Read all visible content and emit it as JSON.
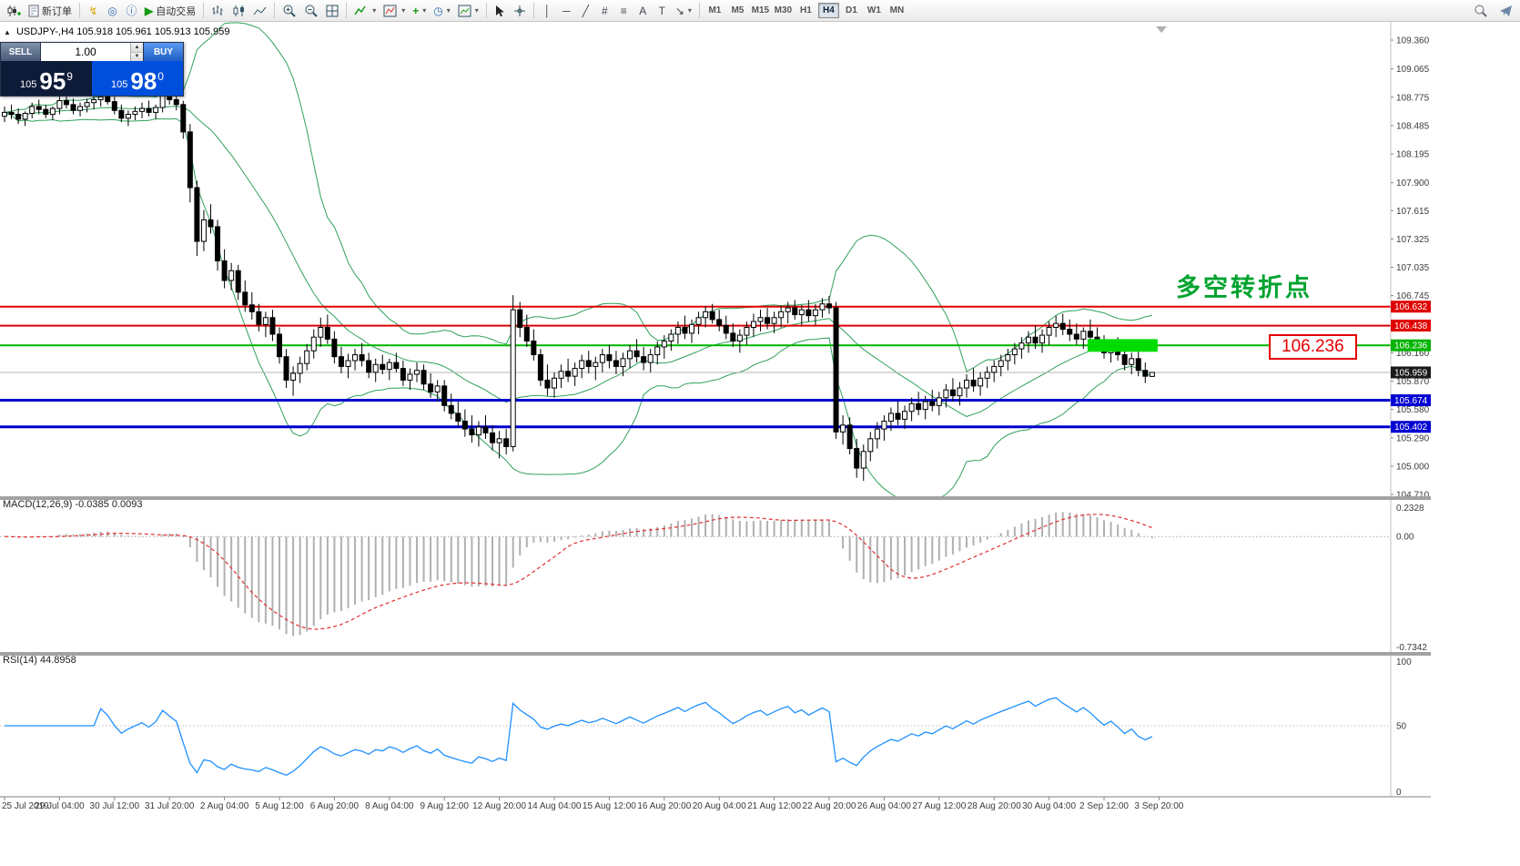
{
  "toolbar": {
    "new_order_label": "新订单",
    "autotrading_label": "自动交易",
    "timeframes": [
      "M1",
      "M5",
      "M15",
      "M30",
      "H1",
      "H4",
      "D1",
      "W1",
      "MN"
    ],
    "active_timeframe": "H4",
    "icons": {
      "new_order": "▤",
      "metaeditor": "↯",
      "market_watch": "◎",
      "info": "ⓘ",
      "autotrading_play": "▶",
      "add_indicator": "+",
      "periods_clock": "◷",
      "caret": "▾",
      "vertical_line": "│",
      "horizontal_line": "─",
      "trendline": "╱",
      "channel": "#",
      "fibonacci": "≡",
      "text": "A",
      "text_label": "T",
      "arrow_tool": "↘",
      "spinner_up": "▲",
      "spinner_down": "▼",
      "symbol_trend": "▲"
    }
  },
  "trade_panel": {
    "sell_label": "SELL",
    "buy_label": "BUY",
    "volume": "1.00",
    "sell_price": {
      "prefix": "105",
      "big": "95",
      "sup": "9"
    },
    "buy_price": {
      "prefix": "105",
      "big": "98",
      "sup": "0"
    }
  },
  "symbol_info": {
    "symbol": "USDJPY-,H4",
    "ohlc": "105.918 105.961 105.913 105.959"
  },
  "annotations": {
    "turning_point_text": "多空转折点",
    "price_box_text": "106.236"
  },
  "indicator_labels": {
    "macd": "MACD(12,26,9) -0.0385 0.0093",
    "rsi": "RSI(14) 44.8958"
  },
  "chart_data": {
    "type": "candlestick",
    "symbol": "USDJPY",
    "timeframe": "H4",
    "title": "USDJPY-,H4",
    "price_axis": {
      "max": 109.36,
      "min": 104.71,
      "ticks": [
        "109.360",
        "109.065",
        "108.775",
        "108.485",
        "108.195",
        "107.900",
        "107.615",
        "107.325",
        "107.035",
        "106.745",
        "106.455",
        "106.160",
        "105.870",
        "105.580",
        "105.290",
        "105.000",
        "104.710"
      ]
    },
    "time_labels": [
      "25 Jul 2019",
      "29 Jul 04:00",
      "30 Jul 12:00",
      "31 Jul 20:00",
      "2 Aug 04:00",
      "5 Aug 12:00",
      "6 Aug 20:00",
      "8 Aug 04:00",
      "9 Aug 12:00",
      "12 Aug 20:00",
      "14 Aug 04:00",
      "15 Aug 12:00",
      "16 Aug 20:00",
      "20 Aug 04:00",
      "21 Aug 12:00",
      "22 Aug 20:00",
      "26 Aug 04:00",
      "27 Aug 12:00",
      "28 Aug 20:00",
      "30 Aug 04:00",
      "2 Sep 12:00",
      "3 Sep 20:00"
    ],
    "bars_per_label": 8,
    "candles": [
      [
        108.58,
        108.68,
        108.52,
        108.62
      ],
      [
        108.62,
        108.7,
        108.55,
        108.6
      ],
      [
        108.6,
        108.66,
        108.5,
        108.55
      ],
      [
        108.55,
        108.63,
        108.48,
        108.61
      ],
      [
        108.61,
        108.72,
        108.56,
        108.68
      ],
      [
        108.68,
        108.75,
        108.6,
        108.65
      ],
      [
        108.65,
        108.7,
        108.56,
        108.6
      ],
      [
        108.6,
        108.68,
        108.54,
        108.66
      ],
      [
        108.66,
        108.78,
        108.6,
        108.74
      ],
      [
        108.74,
        108.8,
        108.66,
        108.7
      ],
      [
        108.7,
        108.76,
        108.6,
        108.64
      ],
      [
        108.64,
        108.72,
        108.58,
        108.68
      ],
      [
        108.68,
        108.76,
        108.62,
        108.72
      ],
      [
        108.72,
        108.8,
        108.65,
        108.75
      ],
      [
        108.75,
        108.82,
        108.68,
        108.78
      ],
      [
        108.78,
        108.84,
        108.7,
        108.73
      ],
      [
        108.73,
        108.78,
        108.6,
        108.64
      ],
      [
        108.64,
        108.7,
        108.52,
        108.56
      ],
      [
        108.56,
        108.64,
        108.48,
        108.6
      ],
      [
        108.6,
        108.68,
        108.54,
        108.63
      ],
      [
        108.63,
        108.72,
        108.56,
        108.66
      ],
      [
        108.66,
        108.74,
        108.58,
        108.62
      ],
      [
        108.62,
        108.7,
        108.55,
        108.67
      ],
      [
        108.67,
        108.85,
        108.62,
        108.8
      ],
      [
        108.8,
        108.88,
        108.7,
        108.75
      ],
      [
        108.75,
        108.82,
        108.64,
        108.7
      ],
      [
        108.7,
        108.74,
        108.35,
        108.42
      ],
      [
        108.42,
        108.5,
        107.7,
        107.85
      ],
      [
        107.85,
        107.92,
        107.15,
        107.3
      ],
      [
        107.3,
        107.62,
        107.2,
        107.52
      ],
      [
        107.52,
        107.68,
        107.38,
        107.45
      ],
      [
        107.45,
        107.52,
        107.0,
        107.1
      ],
      [
        107.1,
        107.22,
        106.82,
        106.9
      ],
      [
        106.9,
        107.08,
        106.8,
        107.0
      ],
      [
        107.0,
        107.06,
        106.7,
        106.78
      ],
      [
        106.78,
        106.9,
        106.58,
        106.65
      ],
      [
        106.65,
        106.78,
        106.5,
        106.58
      ],
      [
        106.58,
        106.66,
        106.38,
        106.45
      ],
      [
        106.45,
        106.58,
        106.32,
        106.52
      ],
      [
        106.52,
        106.6,
        106.28,
        106.35
      ],
      [
        106.35,
        106.42,
        106.05,
        106.12
      ],
      [
        106.12,
        106.2,
        105.8,
        105.88
      ],
      [
        105.88,
        106.02,
        105.72,
        105.95
      ],
      [
        105.95,
        106.12,
        105.85,
        106.05
      ],
      [
        106.05,
        106.25,
        105.98,
        106.18
      ],
      [
        106.18,
        106.4,
        106.1,
        106.32
      ],
      [
        106.32,
        106.52,
        106.22,
        106.42
      ],
      [
        106.42,
        106.55,
        106.25,
        106.3
      ],
      [
        106.3,
        106.38,
        106.05,
        106.12
      ],
      [
        106.12,
        106.22,
        105.95,
        106.02
      ],
      [
        106.02,
        106.15,
        105.9,
        106.08
      ],
      [
        106.08,
        106.2,
        105.98,
        106.14
      ],
      [
        106.14,
        106.26,
        106.02,
        106.08
      ],
      [
        106.08,
        106.16,
        105.9,
        105.96
      ],
      [
        105.96,
        106.1,
        105.86,
        106.04
      ],
      [
        106.04,
        106.14,
        105.94,
        105.99
      ],
      [
        105.99,
        106.1,
        105.88,
        106.06
      ],
      [
        106.06,
        106.16,
        105.96,
        106.0
      ],
      [
        106.0,
        106.08,
        105.82,
        105.88
      ],
      [
        105.88,
        106.0,
        105.78,
        105.94
      ],
      [
        105.94,
        106.06,
        105.86,
        105.98
      ],
      [
        105.98,
        106.04,
        105.78,
        105.84
      ],
      [
        105.84,
        105.95,
        105.7,
        105.76
      ],
      [
        105.76,
        105.88,
        105.66,
        105.82
      ],
      [
        105.82,
        105.88,
        105.56,
        105.62
      ],
      [
        105.62,
        105.74,
        105.48,
        105.54
      ],
      [
        105.54,
        105.66,
        105.4,
        105.46
      ],
      [
        105.46,
        105.58,
        105.3,
        105.38
      ],
      [
        105.38,
        105.52,
        105.24,
        105.32
      ],
      [
        105.32,
        105.46,
        105.2,
        105.4
      ],
      [
        105.4,
        105.52,
        105.28,
        105.34
      ],
      [
        105.34,
        105.42,
        105.16,
        105.24
      ],
      [
        105.24,
        105.36,
        105.08,
        105.28
      ],
      [
        105.28,
        105.38,
        105.12,
        105.2
      ],
      [
        105.2,
        106.75,
        105.15,
        106.6
      ],
      [
        106.6,
        106.68,
        106.32,
        106.42
      ],
      [
        106.42,
        106.55,
        106.22,
        106.28
      ],
      [
        106.28,
        106.4,
        106.08,
        106.14
      ],
      [
        106.14,
        106.2,
        105.82,
        105.88
      ],
      [
        105.88,
        106.04,
        105.72,
        105.8
      ],
      [
        105.8,
        105.96,
        105.7,
        105.9
      ],
      [
        105.9,
        106.04,
        105.8,
        105.97
      ],
      [
        105.97,
        106.1,
        105.86,
        105.92
      ],
      [
        105.92,
        106.06,
        105.82,
        106.0
      ],
      [
        106.0,
        106.14,
        105.9,
        106.08
      ],
      [
        106.08,
        106.18,
        105.95,
        106.02
      ],
      [
        106.02,
        106.12,
        105.88,
        106.06
      ],
      [
        106.06,
        106.2,
        105.96,
        106.14
      ],
      [
        106.14,
        106.24,
        106.0,
        106.08
      ],
      [
        106.08,
        106.18,
        105.94,
        106.02
      ],
      [
        106.02,
        106.16,
        105.92,
        106.1
      ],
      [
        106.1,
        106.24,
        106.0,
        106.18
      ],
      [
        106.18,
        106.3,
        106.06,
        106.12
      ],
      [
        106.12,
        106.22,
        105.98,
        106.06
      ],
      [
        106.06,
        106.2,
        105.96,
        106.14
      ],
      [
        106.14,
        106.28,
        106.04,
        106.22
      ],
      [
        106.22,
        106.34,
        106.1,
        106.28
      ],
      [
        106.28,
        106.4,
        106.18,
        106.35
      ],
      [
        106.35,
        106.48,
        106.25,
        106.42
      ],
      [
        106.42,
        106.54,
        106.3,
        106.36
      ],
      [
        106.36,
        106.5,
        106.26,
        106.45
      ],
      [
        106.45,
        106.58,
        106.35,
        106.52
      ],
      [
        106.52,
        106.64,
        106.42,
        106.58
      ],
      [
        106.58,
        106.66,
        106.46,
        106.5
      ],
      [
        106.5,
        106.6,
        106.38,
        106.44
      ],
      [
        106.44,
        106.54,
        106.3,
        106.36
      ],
      [
        106.36,
        106.46,
        106.22,
        106.28
      ],
      [
        106.28,
        106.4,
        106.16,
        106.34
      ],
      [
        106.34,
        106.48,
        106.24,
        106.42
      ],
      [
        106.42,
        106.56,
        106.32,
        106.48
      ],
      [
        106.48,
        106.6,
        106.38,
        106.52
      ],
      [
        106.52,
        106.62,
        106.4,
        106.46
      ],
      [
        106.46,
        106.58,
        106.36,
        106.52
      ],
      [
        106.52,
        106.64,
        106.42,
        106.58
      ],
      [
        106.58,
        106.68,
        106.46,
        106.62
      ],
      [
        106.62,
        106.7,
        106.5,
        106.55
      ],
      [
        106.55,
        106.65,
        106.44,
        106.6
      ],
      [
        106.6,
        106.7,
        106.48,
        106.54
      ],
      [
        106.54,
        106.66,
        106.44,
        106.6
      ],
      [
        106.6,
        106.72,
        106.52,
        106.66
      ],
      [
        106.66,
        106.74,
        106.56,
        106.62
      ],
      [
        106.62,
        106.68,
        105.28,
        105.35
      ],
      [
        105.35,
        105.52,
        105.22,
        105.42
      ],
      [
        105.42,
        105.5,
        105.12,
        105.18
      ],
      [
        105.18,
        105.28,
        104.88,
        104.98
      ],
      [
        104.98,
        105.22,
        104.85,
        105.15
      ],
      [
        105.15,
        105.35,
        105.05,
        105.28
      ],
      [
        105.28,
        105.45,
        105.18,
        105.38
      ],
      [
        105.38,
        105.52,
        105.26,
        105.46
      ],
      [
        105.46,
        105.6,
        105.36,
        105.54
      ],
      [
        105.54,
        105.66,
        105.42,
        105.48
      ],
      [
        105.48,
        105.62,
        105.38,
        105.56
      ],
      [
        105.56,
        105.7,
        105.46,
        105.64
      ],
      [
        105.64,
        105.76,
        105.52,
        105.58
      ],
      [
        105.58,
        105.72,
        105.48,
        105.66
      ],
      [
        105.66,
        105.78,
        105.56,
        105.62
      ],
      [
        105.62,
        105.76,
        105.52,
        105.7
      ],
      [
        105.7,
        105.84,
        105.6,
        105.78
      ],
      [
        105.78,
        105.9,
        105.66,
        105.72
      ],
      [
        105.72,
        105.86,
        105.62,
        105.8
      ],
      [
        105.8,
        105.94,
        105.7,
        105.88
      ],
      [
        105.88,
        106.0,
        105.76,
        105.82
      ],
      [
        105.82,
        105.96,
        105.72,
        105.9
      ],
      [
        105.9,
        106.02,
        105.8,
        105.96
      ],
      [
        105.96,
        106.08,
        105.86,
        106.02
      ],
      [
        106.02,
        106.14,
        105.92,
        106.08
      ],
      [
        106.08,
        106.2,
        105.98,
        106.14
      ],
      [
        106.14,
        106.26,
        106.04,
        106.2
      ],
      [
        106.2,
        106.32,
        106.1,
        106.26
      ],
      [
        106.26,
        106.38,
        106.16,
        106.32
      ],
      [
        106.32,
        106.44,
        106.2,
        106.26
      ],
      [
        106.26,
        106.4,
        106.16,
        106.34
      ],
      [
        106.34,
        106.48,
        106.24,
        106.42
      ],
      [
        106.42,
        106.54,
        106.32,
        106.46
      ],
      [
        106.46,
        106.56,
        106.34,
        106.4
      ],
      [
        106.4,
        106.5,
        106.28,
        106.35
      ],
      [
        106.35,
        106.46,
        106.24,
        106.3
      ],
      [
        106.3,
        106.42,
        106.2,
        106.38
      ],
      [
        106.38,
        106.5,
        106.28,
        106.32
      ],
      [
        106.32,
        106.42,
        106.18,
        106.24
      ],
      [
        106.24,
        106.34,
        106.1,
        106.16
      ],
      [
        106.16,
        106.28,
        106.06,
        106.22
      ],
      [
        106.22,
        106.32,
        106.08,
        106.14
      ],
      [
        106.14,
        106.22,
        105.98,
        106.04
      ],
      [
        106.04,
        106.16,
        105.94,
        106.1
      ],
      [
        106.1,
        106.18,
        105.92,
        105.98
      ],
      [
        105.98,
        106.06,
        105.85,
        105.92
      ],
      [
        105.918,
        105.961,
        105.913,
        105.959
      ]
    ],
    "colors": {
      "bull": "#ffffff",
      "bear": "#000000",
      "outline": "#000000",
      "bollinger": "#2fa05a",
      "macd_hist": "#b0b0b0",
      "macd_signal": "#e03131",
      "rsi": "#1e90ff",
      "axis_text": "#3c3c3c"
    },
    "overlays": {
      "bollinger": {
        "period": 20,
        "deviation": 2
      },
      "hlines": [
        {
          "price": 106.632,
          "color": "#e10000",
          "width": 2
        },
        {
          "price": 106.438,
          "color": "#e10000",
          "width": 2
        },
        {
          "price": 106.236,
          "color": "#00b400",
          "width": 2
        },
        {
          "price": 105.674,
          "color": "#0000d2",
          "width": 3
        },
        {
          "price": 105.402,
          "color": "#0000d2",
          "width": 3
        }
      ],
      "bid_line": {
        "price": 105.959,
        "color": "#b4b4b4",
        "tag_color": "#1a1a1a"
      },
      "highlight": {
        "from_bar": 158,
        "to_bar": 167,
        "price_from": 106.17,
        "price_to": 106.3,
        "color": "#00dc00"
      }
    },
    "indicators": [
      {
        "name": "MACD",
        "params": [
          12,
          26,
          9
        ],
        "value": -0.0385,
        "signal": 0.0093,
        "axis_max": 0.2328,
        "axis_min": -0.7342,
        "axis_labels": [
          "0.2328",
          "0.00",
          "-0.7342"
        ]
      },
      {
        "name": "RSI",
        "params": [
          14
        ],
        "value": 44.8958,
        "axis_labels": [
          "100",
          "50",
          "0"
        ]
      }
    ]
  }
}
